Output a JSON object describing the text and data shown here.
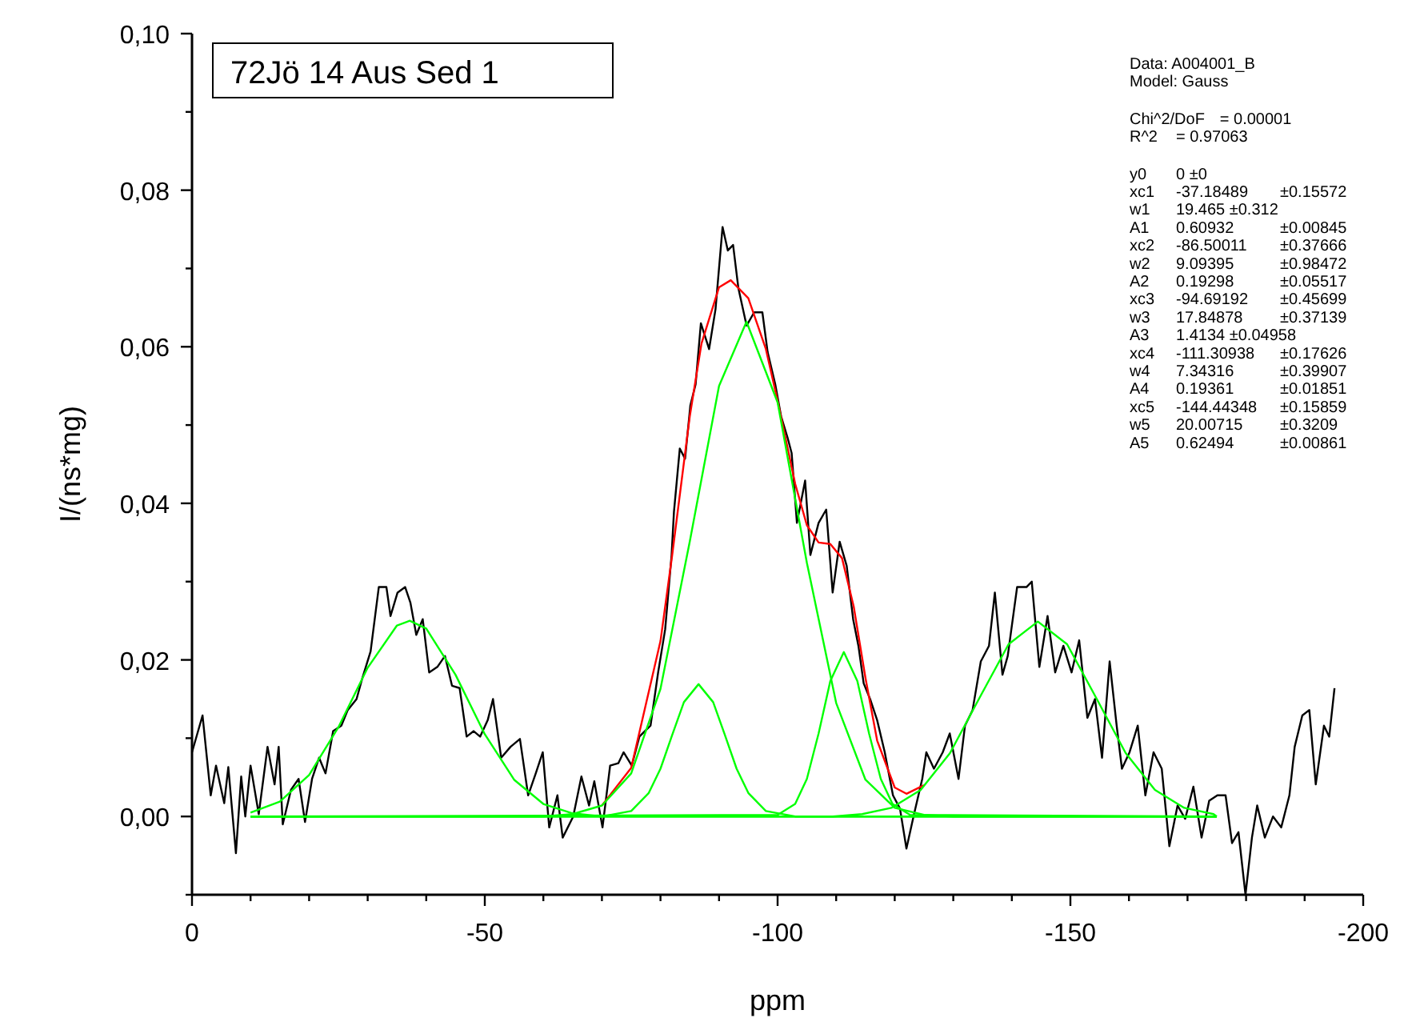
{
  "chart_data": {
    "type": "line",
    "title": "72Jö 14 Aus Sed 1",
    "xlabel": "ppm",
    "ylabel": "I/(ns*mg)",
    "xlim": [
      0,
      -200
    ],
    "ylim": [
      -0.01,
      0.1
    ],
    "xticks": [
      0,
      {
        "value": -10,
        "label": null
      },
      {
        "value": -20,
        "label": null
      },
      {
        "value": -30,
        "label": null
      },
      {
        "value": -40,
        "label": null
      },
      -50,
      {
        "value": -60,
        "label": null
      },
      {
        "value": -70,
        "label": null
      },
      {
        "value": -80,
        "label": null
      },
      {
        "value": -90,
        "label": null
      },
      -100,
      {
        "value": -110,
        "label": null
      },
      {
        "value": -120,
        "label": null
      },
      {
        "value": -130,
        "label": null
      },
      {
        "value": -140,
        "label": null
      },
      -150,
      {
        "value": -160,
        "label": null
      },
      {
        "value": -170,
        "label": null
      },
      {
        "value": -180,
        "label": null
      },
      {
        "value": -190,
        "label": null
      },
      -200
    ],
    "yticks": [
      {
        "value": -0.01,
        "label": null
      },
      {
        "value": 0,
        "label": "0,00"
      },
      {
        "value": 0.01,
        "label": null
      },
      {
        "value": 0.02,
        "label": "0,02"
      },
      {
        "value": 0.03,
        "label": null
      },
      {
        "value": 0.04,
        "label": "0,04"
      },
      {
        "value": 0.05,
        "label": null
      },
      {
        "value": 0.06,
        "label": "0,06"
      },
      {
        "value": 0.07,
        "label": null
      },
      {
        "value": 0.08,
        "label": "0,08"
      },
      {
        "value": 0.09,
        "label": null
      },
      {
        "value": 0.1,
        "label": "0,10"
      }
    ],
    "grid": false,
    "marker": "none",
    "line_style": "solid",
    "series": [
      {
        "color": "#000000",
        "x": [
          0,
          -1.8,
          -3.2,
          -4.1,
          -5.5,
          -6.2,
          -7.5,
          -8.4,
          -9.1,
          -10.0,
          -11.4,
          -12.9,
          -14.1,
          -14.8,
          -15.5,
          -16.9,
          -18.2,
          -19.3,
          -20.5,
          -21.7,
          -22.8,
          -24.1,
          -25.5,
          -26.6,
          -28.1,
          -29.1,
          -30.5,
          -31.9,
          -33.2,
          -33.9,
          -35.1,
          -36.4,
          -37.3,
          -38.3,
          -39.4,
          -40.5,
          -41.9,
          -43.2,
          -44.4,
          -45.7,
          -46.9,
          -48.1,
          -49.2,
          -50.5,
          -51.4,
          -52.8,
          -54.4,
          -56.0,
          -57.4,
          -58.7,
          -59.9,
          -61.0,
          -62.4,
          -63.3,
          -65.1,
          -66.5,
          -67.8,
          -68.7,
          -70.1,
          -71.4,
          -72.8,
          -73.7,
          -75.1,
          -76.4,
          -78.3,
          -79.6,
          -80.8,
          -81.9,
          -82.3,
          -83.3,
          -84.2,
          -85.1,
          -86.0,
          -86.9,
          -88.3,
          -89.4,
          -90.6,
          -91.5,
          -92.4,
          -93.3,
          -94.7,
          -96.0,
          -97.4,
          -98.3,
          -99.6,
          -100.6,
          -101.7,
          -102.4,
          -103.3,
          -104.7,
          -105.6,
          -107.0,
          -108.3,
          -109.4,
          -110.6,
          -111.8,
          -112.9,
          -113.8,
          -114.7,
          -115.8,
          -117.0,
          -118.3,
          -119.7,
          -120.9,
          -122.0,
          -123.3,
          -124.7,
          -125.4,
          -126.7,
          -128.2,
          -129.4,
          -130.9,
          -132.0,
          -133.3,
          -134.7,
          -136.1,
          -137.1,
          -138.4,
          -139.3,
          -140.9,
          -142.5,
          -143.4,
          -144.7,
          -146.1,
          -147.4,
          -148.8,
          -150.2,
          -151.5,
          -152.9,
          -154.2,
          -155.4,
          -156.7,
          -157.9,
          -158.8,
          -160.1,
          -161.5,
          -162.8,
          -164.2,
          -165.6,
          -166.9,
          -168.3,
          -169.6,
          -171.0,
          -172.4,
          -173.7,
          -175.1,
          -176.5,
          -177.6,
          -178.7,
          -179.9,
          -181.0,
          -181.9,
          -183.2,
          -184.6,
          -186.0,
          -187.4,
          -188.3,
          -189.6,
          -190.8,
          -191.9,
          -193.3,
          -194.2,
          -195.1
        ],
        "values": [
          0.0082,
          0.0129,
          0.0027,
          0.0065,
          0.0017,
          0.0063,
          -0.0047,
          0.0051,
          0,
          0.0065,
          0.0003,
          0.0089,
          0.0041,
          0.0089,
          -0.001,
          0.0034,
          0.0048,
          -0.0007,
          0.0048,
          0.0075,
          0.0055,
          0.0109,
          0.0116,
          0.0136,
          0.015,
          0.0177,
          0.0211,
          0.0293,
          0.0293,
          0.0256,
          0.0286,
          0.0293,
          0.0273,
          0.0232,
          0.0252,
          0.0184,
          0.0191,
          0.0205,
          0.0167,
          0.0164,
          0.0102,
          0.0109,
          0.0102,
          0.0123,
          0.015,
          0.0075,
          0.0089,
          0.0099,
          0.0027,
          0.0055,
          0.0082,
          -0.0014,
          0.0027,
          -0.0027,
          0,
          0.0051,
          0.0014,
          0.0045,
          -0.0014,
          0.0065,
          0.0068,
          0.0082,
          0.0065,
          0.0102,
          0.0116,
          0.0184,
          0.0239,
          0.0334,
          0.0389,
          0.047,
          0.0457,
          0.0525,
          0.0552,
          0.063,
          0.0597,
          0.0648,
          0.0753,
          0.0723,
          0.073,
          0.0675,
          0.0627,
          0.0644,
          0.0644,
          0.0593,
          0.0552,
          0.0511,
          0.0484,
          0.0464,
          0.0375,
          0.0429,
          0.0334,
          0.0375,
          0.0392,
          0.0286,
          0.0351,
          0.032,
          0.0252,
          0.0218,
          0.017,
          0.015,
          0.0123,
          0.0082,
          0.0027,
          0.001,
          -0.0041,
          0.0003,
          0.0048,
          0.0082,
          0.0061,
          0.0082,
          0.0106,
          0.0048,
          0.0116,
          0.0136,
          0.0198,
          0.0218,
          0.0286,
          0.0181,
          0.0205,
          0.0293,
          0.0293,
          0.03,
          0.0191,
          0.0256,
          0.0184,
          0.0218,
          0.0184,
          0.0225,
          0.0126,
          0.015,
          0.0075,
          0.0198,
          0.0116,
          0.0061,
          0.0082,
          0.0116,
          0.0027,
          0.0082,
          0.0061,
          -0.0038,
          0.0014,
          -0.0003,
          0.0038,
          -0.0027,
          0.002,
          0.0027,
          0.0027,
          -0.0034,
          -0.002,
          -0.01,
          -0.0027,
          0.0014,
          -0.0027,
          0,
          -0.0014,
          0.0027,
          0.0089,
          0.0129,
          0.0136,
          0.0041,
          0.0116,
          0.0102,
          0.0164
        ]
      },
      {
        "color": "#ff0000",
        "x": [
          -70,
          -75,
          -80,
          -82,
          -85,
          -87,
          -90,
          -92,
          -95,
          -98,
          -100,
          -103,
          -105,
          -107,
          -109,
          -111,
          -113,
          -115,
          -117,
          -120,
          -122,
          -125
        ],
        "values": [
          0.0014,
          0.0062,
          0.0224,
          0.0334,
          0.0511,
          0.0604,
          0.0676,
          0.0685,
          0.0662,
          0.0597,
          0.0531,
          0.0425,
          0.0372,
          0.035,
          0.0348,
          0.033,
          0.0268,
          0.0177,
          0.0097,
          0.0037,
          0.0029,
          0.004
        ]
      },
      {
        "color": "#00ff00",
        "x": [
          -10,
          -15,
          -20,
          -25,
          -30,
          -35,
          -37.18,
          -40,
          -45,
          -50,
          -55,
          -60,
          -65,
          -70,
          -175
        ],
        "values": [
          0.0005,
          0.0019,
          0.0053,
          0.0114,
          0.019,
          0.0244,
          0.025,
          0.024,
          0.0181,
          0.0105,
          0.0047,
          0.0016,
          0.0004,
          0,
          0
        ]
      },
      {
        "color": "#00ff00",
        "x": [
          -10,
          -70,
          -75,
          -78,
          -80,
          -82,
          -84,
          -86.5,
          -89,
          -91,
          -93,
          -95,
          -98,
          -103,
          -175
        ],
        "values": [
          0,
          0,
          0.0007,
          0.003,
          0.0061,
          0.0104,
          0.0146,
          0.0169,
          0.0146,
          0.0104,
          0.0061,
          0.003,
          0.0007,
          0,
          0
        ]
      },
      {
        "color": "#00ff00",
        "x": [
          -10,
          -60,
          -65,
          -70,
          -75,
          -80,
          -85,
          -90,
          -94.69,
          -100,
          -105,
          -110,
          -115,
          -120,
          -125,
          -130,
          -175
        ],
        "values": [
          0,
          0,
          0.0003,
          0.0014,
          0.0055,
          0.0163,
          0.0351,
          0.055,
          0.0632,
          0.0529,
          0.0324,
          0.0145,
          0.0047,
          0.0011,
          0.0002,
          0,
          0
        ]
      },
      {
        "color": "#00ff00",
        "x": [
          -10,
          -100,
          -103,
          -105,
          -107,
          -109,
          -111.31,
          -113.62,
          -115.62,
          -117.62,
          -119.62,
          -122.62,
          -175
        ],
        "values": [
          0,
          0.0002,
          0.0016,
          0.0048,
          0.0106,
          0.0173,
          0.021,
          0.0173,
          0.0106,
          0.0048,
          0.0016,
          0.0002,
          0
        ]
      },
      {
        "color": "#00ff00",
        "x": [
          -10,
          -109.44,
          -114.44,
          -119.44,
          -124.44,
          -129.44,
          -134.44,
          -139.44,
          -144.44,
          -149.44,
          -154.44,
          -159.44,
          -164.44,
          -169.44,
          -174.44,
          -175
        ],
        "values": [
          0,
          0,
          0.0003,
          0.0011,
          0.0034,
          0.0081,
          0.0151,
          0.022,
          0.0249,
          0.022,
          0.0151,
          0.0081,
          0.0034,
          0.0011,
          0.0003,
          0
        ]
      }
    ],
    "annotations": [
      "Data: A004001_B",
      "Model: Gauss",
      "Chi^2/DoF\t= 0.00001",
      "R^2\t= 0.97063",
      "y0\t0 ±0",
      "xc1\t-37.18489\t±0.15572",
      "w1\t19.465 ±0.312",
      "A1\t0.60932\t±0.00845",
      "xc2\t-86.50011\t±0.37666",
      "w2\t9.09395\t±0.98472",
      "A2\t0.19298\t±0.05517",
      "xc3\t-94.69192\t±0.45699",
      "w3\t17.84878\t±0.37139",
      "A3\t1.4134 ±0.04958",
      "xc4\t-111.30938\t±0.17626",
      "w4\t7.34316\t±0.39907",
      "A4\t0.19361\t±0.01851",
      "xc5\t-144.44348\t±0.15859",
      "w5\t20.00715\t±0.3209",
      "A5\t0.62494\t±0.00861"
    ]
  }
}
